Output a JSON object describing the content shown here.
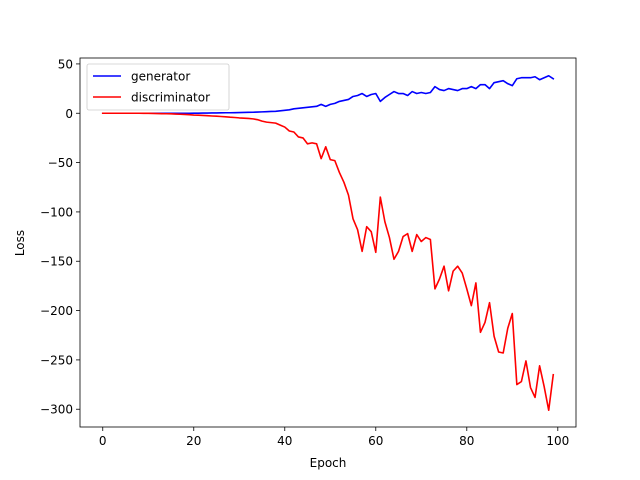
{
  "chart_data": {
    "type": "line",
    "title": "",
    "xlabel": "Epoch",
    "ylabel": "Loss",
    "xlim": [
      -5,
      104
    ],
    "ylim": [
      -318,
      56
    ],
    "xticks": [
      0,
      20,
      40,
      60,
      80,
      100
    ],
    "xtick_labels": [
      "0",
      "20",
      "40",
      "60",
      "80",
      "100"
    ],
    "yticks": [
      50,
      0,
      -50,
      -100,
      -150,
      -200,
      -250,
      -300
    ],
    "ytick_labels": [
      "50",
      "0",
      "−50",
      "−100",
      "−150",
      "−200",
      "−250",
      "−300"
    ],
    "grid": false,
    "legend_position": "top-left",
    "x": [
      0,
      1,
      2,
      3,
      4,
      5,
      6,
      7,
      8,
      9,
      10,
      11,
      12,
      13,
      14,
      15,
      16,
      17,
      18,
      19,
      20,
      21,
      22,
      23,
      24,
      25,
      26,
      27,
      28,
      29,
      30,
      31,
      32,
      33,
      34,
      35,
      36,
      37,
      38,
      39,
      40,
      41,
      42,
      43,
      44,
      45,
      46,
      47,
      48,
      49,
      50,
      51,
      52,
      53,
      54,
      55,
      56,
      57,
      58,
      59,
      60,
      61,
      62,
      63,
      64,
      65,
      66,
      67,
      68,
      69,
      70,
      71,
      72,
      73,
      74,
      75,
      76,
      77,
      78,
      79,
      80,
      81,
      82,
      83,
      84,
      85,
      86,
      87,
      88,
      89,
      90,
      91,
      92,
      93,
      94,
      95,
      96,
      97,
      98,
      99
    ],
    "series": [
      {
        "name": "generator",
        "color": "#0000ff",
        "values": [
          0,
          0,
          0,
          0,
          0,
          0,
          0,
          0,
          0,
          0,
          0,
          0,
          0,
          0,
          0,
          0,
          0,
          0,
          0,
          0,
          0.1,
          0.1,
          0.2,
          0.2,
          0.3,
          0.3,
          0.4,
          0.5,
          0.5,
          0.6,
          0.7,
          0.8,
          0.9,
          1.0,
          1.2,
          1.4,
          1.6,
          1.8,
          2.0,
          2.5,
          3.0,
          3.5,
          4.5,
          5,
          5.5,
          6,
          6.5,
          7,
          9,
          7,
          9,
          10,
          12,
          13,
          14,
          17,
          18,
          20,
          17,
          19,
          20,
          12,
          16,
          19,
          22,
          20,
          20,
          18,
          22,
          20,
          21,
          20,
          21,
          27,
          24,
          23,
          25,
          24,
          23,
          25,
          25,
          27,
          25,
          29,
          29,
          25,
          31,
          32,
          33,
          30,
          28,
          35,
          36,
          36,
          36,
          37,
          34,
          36,
          38,
          35
        ]
      },
      {
        "name": "discriminator",
        "color": "#ff0000",
        "values": [
          0,
          0,
          0,
          0,
          0,
          0,
          0,
          0,
          0,
          -0.1,
          -0.1,
          -0.2,
          -0.3,
          -0.4,
          -0.5,
          -0.6,
          -0.8,
          -1.0,
          -1.2,
          -1.5,
          -1.8,
          -2.0,
          -2.2,
          -2.5,
          -2.8,
          -3.0,
          -3.3,
          -3.6,
          -4.0,
          -4.3,
          -4.7,
          -5.0,
          -5.3,
          -5.7,
          -6.5,
          -8,
          -9,
          -9.5,
          -10,
          -12,
          -14,
          -18,
          -19,
          -24,
          -25,
          -31,
          -30,
          -31,
          -46,
          -34,
          -47,
          -48,
          -60,
          -70,
          -83,
          -107,
          -118,
          -140,
          -115,
          -120,
          -141,
          -85,
          -110,
          -126,
          -148,
          -140,
          -125,
          -122,
          -140,
          -123,
          -130,
          -126,
          -128,
          -178,
          -168,
          -155,
          -180,
          -160,
          -155,
          -162,
          -178,
          -195,
          -172,
          -222,
          -212,
          -192,
          -226,
          -242,
          -243,
          -218,
          -203,
          -275,
          -272,
          -251,
          -278,
          -288,
          -256,
          -277,
          -301,
          -265
        ]
      }
    ]
  }
}
